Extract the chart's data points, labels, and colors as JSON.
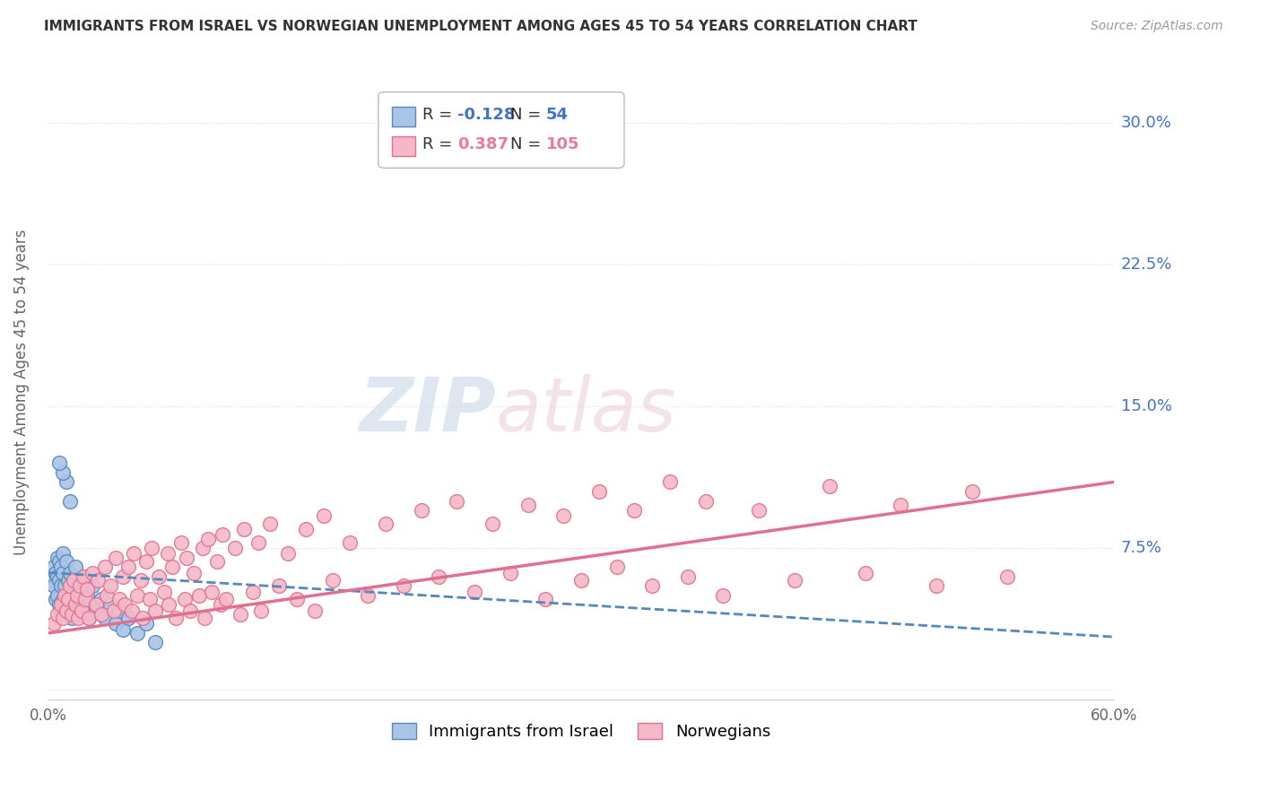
{
  "title": "IMMIGRANTS FROM ISRAEL VS NORWEGIAN UNEMPLOYMENT AMONG AGES 45 TO 54 YEARS CORRELATION CHART",
  "source": "Source: ZipAtlas.com",
  "ylabel": "Unemployment Among Ages 45 to 54 years",
  "xlim": [
    0.0,
    0.6
  ],
  "ylim": [
    -0.005,
    0.32
  ],
  "yticks": [
    0.0,
    0.075,
    0.15,
    0.225,
    0.3
  ],
  "ytick_labels": [
    "",
    "7.5%",
    "15.0%",
    "22.5%",
    "30.0%"
  ],
  "xticks": [
    0.0,
    0.12,
    0.24,
    0.36,
    0.48,
    0.6
  ],
  "xtick_labels": [
    "0.0%",
    "",
    "",
    "",
    "",
    "60.0%"
  ],
  "grid_color": "#dddddd",
  "background_color": "#ffffff",
  "legend_items": [
    "Immigrants from Israel",
    "Norwegians"
  ],
  "israel_color": "#aac4e8",
  "israel_edge_color": "#5588bb",
  "norway_color": "#f5b8c8",
  "norway_edge_color": "#e07090",
  "israel_R": -0.128,
  "israel_N": 54,
  "norway_R": 0.387,
  "norway_N": 105,
  "israel_scatter_x": [
    0.002,
    0.003,
    0.003,
    0.004,
    0.004,
    0.005,
    0.005,
    0.005,
    0.006,
    0.006,
    0.006,
    0.007,
    0.007,
    0.007,
    0.008,
    0.008,
    0.008,
    0.009,
    0.009,
    0.01,
    0.01,
    0.011,
    0.011,
    0.012,
    0.012,
    0.013,
    0.013,
    0.014,
    0.015,
    0.015,
    0.016,
    0.017,
    0.018,
    0.019,
    0.02,
    0.021,
    0.022,
    0.023,
    0.025,
    0.027,
    0.03,
    0.032,
    0.035,
    0.038,
    0.04,
    0.042,
    0.045,
    0.05,
    0.055,
    0.06,
    0.012,
    0.01,
    0.008,
    0.006
  ],
  "israel_scatter_y": [
    0.058,
    0.065,
    0.055,
    0.062,
    0.048,
    0.07,
    0.06,
    0.05,
    0.068,
    0.058,
    0.045,
    0.065,
    0.055,
    0.042,
    0.072,
    0.062,
    0.048,
    0.055,
    0.042,
    0.068,
    0.05,
    0.058,
    0.04,
    0.062,
    0.045,
    0.055,
    0.038,
    0.05,
    0.065,
    0.042,
    0.058,
    0.048,
    0.055,
    0.04,
    0.06,
    0.045,
    0.05,
    0.038,
    0.055,
    0.042,
    0.048,
    0.038,
    0.045,
    0.035,
    0.042,
    0.032,
    0.038,
    0.03,
    0.035,
    0.025,
    0.1,
    0.11,
    0.115,
    0.12
  ],
  "norway_scatter_x": [
    0.003,
    0.005,
    0.007,
    0.008,
    0.009,
    0.01,
    0.011,
    0.012,
    0.013,
    0.014,
    0.015,
    0.016,
    0.017,
    0.018,
    0.019,
    0.02,
    0.021,
    0.022,
    0.023,
    0.025,
    0.027,
    0.028,
    0.03,
    0.032,
    0.033,
    0.035,
    0.037,
    0.038,
    0.04,
    0.042,
    0.043,
    0.045,
    0.047,
    0.048,
    0.05,
    0.052,
    0.053,
    0.055,
    0.057,
    0.058,
    0.06,
    0.062,
    0.065,
    0.067,
    0.068,
    0.07,
    0.072,
    0.075,
    0.077,
    0.078,
    0.08,
    0.082,
    0.085,
    0.087,
    0.088,
    0.09,
    0.092,
    0.095,
    0.097,
    0.098,
    0.1,
    0.105,
    0.108,
    0.11,
    0.115,
    0.118,
    0.12,
    0.125,
    0.13,
    0.135,
    0.14,
    0.145,
    0.15,
    0.155,
    0.16,
    0.17,
    0.18,
    0.19,
    0.2,
    0.21,
    0.22,
    0.23,
    0.24,
    0.25,
    0.26,
    0.27,
    0.28,
    0.29,
    0.3,
    0.31,
    0.32,
    0.33,
    0.34,
    0.35,
    0.36,
    0.37,
    0.38,
    0.4,
    0.42,
    0.44,
    0.46,
    0.48,
    0.5,
    0.52,
    0.54
  ],
  "norway_scatter_y": [
    0.035,
    0.04,
    0.045,
    0.038,
    0.05,
    0.042,
    0.048,
    0.055,
    0.04,
    0.058,
    0.045,
    0.05,
    0.038,
    0.055,
    0.042,
    0.06,
    0.048,
    0.053,
    0.038,
    0.062,
    0.045,
    0.058,
    0.04,
    0.065,
    0.05,
    0.055,
    0.042,
    0.07,
    0.048,
    0.06,
    0.045,
    0.065,
    0.042,
    0.072,
    0.05,
    0.058,
    0.038,
    0.068,
    0.048,
    0.075,
    0.042,
    0.06,
    0.052,
    0.072,
    0.045,
    0.065,
    0.038,
    0.078,
    0.048,
    0.07,
    0.042,
    0.062,
    0.05,
    0.075,
    0.038,
    0.08,
    0.052,
    0.068,
    0.045,
    0.082,
    0.048,
    0.075,
    0.04,
    0.085,
    0.052,
    0.078,
    0.042,
    0.088,
    0.055,
    0.072,
    0.048,
    0.085,
    0.042,
    0.092,
    0.058,
    0.078,
    0.05,
    0.088,
    0.055,
    0.095,
    0.06,
    0.1,
    0.052,
    0.088,
    0.062,
    0.098,
    0.048,
    0.092,
    0.058,
    0.105,
    0.065,
    0.095,
    0.055,
    0.11,
    0.06,
    0.1,
    0.05,
    0.095,
    0.058,
    0.108,
    0.062,
    0.098,
    0.055,
    0.105,
    0.06
  ],
  "israel_trend_x0": 0.0,
  "israel_trend_x1": 0.6,
  "israel_trend_y0": 0.062,
  "israel_trend_y1": 0.028,
  "norway_trend_x0": 0.0,
  "norway_trend_x1": 0.6,
  "norway_trend_y0": 0.03,
  "norway_trend_y1": 0.11
}
